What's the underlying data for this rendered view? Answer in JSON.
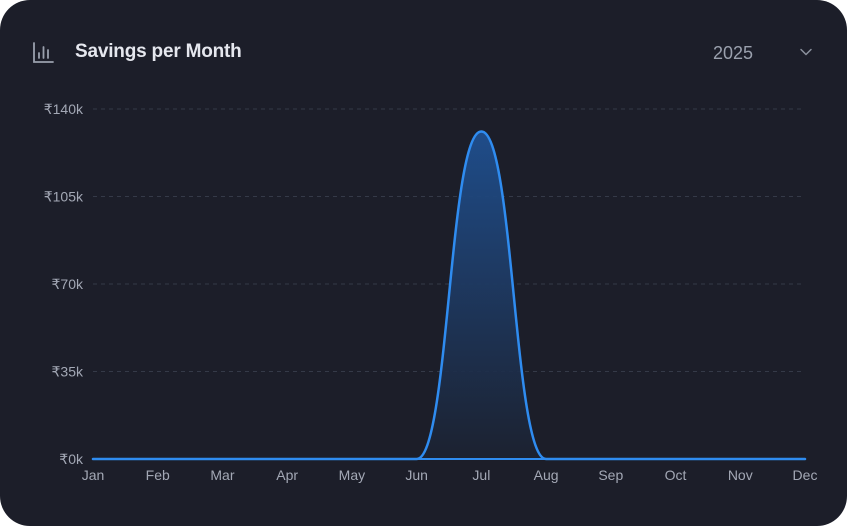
{
  "header": {
    "title": "Savings per Month",
    "year_selected": "2025",
    "icon": "bar-chart-icon",
    "dropdown_icon": "chevron-down-icon"
  },
  "chart_data": {
    "type": "area",
    "title": "Savings per Month",
    "xlabel": "",
    "ylabel": "",
    "categories": [
      "Jan",
      "Feb",
      "Mar",
      "Apr",
      "May",
      "Jun",
      "Jul",
      "Aug",
      "Sep",
      "Oct",
      "Nov",
      "Dec"
    ],
    "values": [
      0,
      0,
      0,
      0,
      0,
      0,
      131000,
      0,
      0,
      0,
      0,
      0
    ],
    "ylim": [
      0,
      140000
    ],
    "yticks": [
      0,
      35000,
      70000,
      105000,
      140000
    ],
    "ytick_labels": [
      "₹0k",
      "₹35k",
      "₹70k",
      "₹105k",
      "₹140k"
    ],
    "grid": true,
    "legend": "none",
    "colors": {
      "line": "#2f8cf0",
      "fill_top": "#1f4f8f",
      "fill_bottom": "#1c2231",
      "grid": "#353a48",
      "axis": "#2f8cf0",
      "tick_text": "#a3a8b5"
    }
  }
}
